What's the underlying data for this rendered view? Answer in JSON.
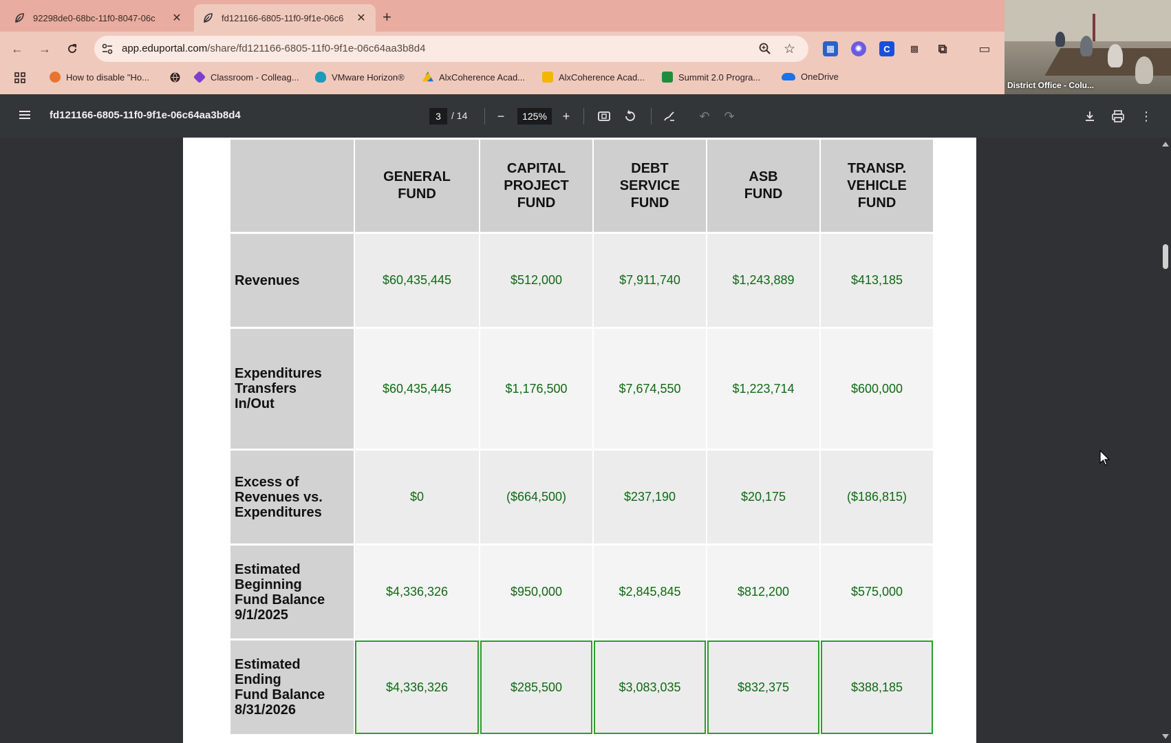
{
  "browser": {
    "tabs": [
      {
        "title": "92298de0-68bc-11f0-8047-06c",
        "active": false
      },
      {
        "title": "fd121166-6805-11f0-9f1e-06c6",
        "active": true
      }
    ],
    "url_host": "app.eduportal.com",
    "url_path": "/share/fd121166-6805-11f0-9f1e-06c64aa3b8d4",
    "bookmarks": [
      {
        "label": "How to disable \"Ho...",
        "color": "#e8742f"
      },
      {
        "label": "Classroom - Colleag...",
        "color": "#7b3fd0"
      },
      {
        "label": "VMware Horizon®",
        "color": "#1d9ab8"
      },
      {
        "label": "AlxCoherence Acad...",
        "color": "#2e7d32"
      },
      {
        "label": "AlxCoherence Acad...",
        "color": "#f2b705"
      },
      {
        "label": "Summit 2.0 Progra...",
        "color": "#1e8e3e"
      },
      {
        "label": "OneDrive",
        "color": "#1a73e8"
      }
    ]
  },
  "video": {
    "label": "District Office - Colu..."
  },
  "pdf": {
    "title": "fd121166-6805-11f0-9f1e-06c64aa3b8d4",
    "page_current": "3",
    "page_total": "/ 14",
    "zoom": "125%"
  },
  "table": {
    "headers": [
      "GENERAL\nFUND",
      "CAPITAL\nPROJECT\nFUND",
      "DEBT\nSERVICE\nFUND",
      "ASB\nFUND",
      "TRANSP.\nVEHICLE\nFUND"
    ],
    "rows": [
      {
        "label": "Revenues",
        "values": [
          "$60,435,445",
          "$512,000",
          "$7,911,740",
          "$1,243,889",
          "$413,185"
        ]
      },
      {
        "label": "Expenditures\nTransfers\nIn/Out",
        "values": [
          "$60,435,445",
          "$1,176,500",
          "$7,674,550",
          "$1,223,714",
          "$600,000"
        ]
      },
      {
        "label": "Excess of\nRevenues vs.\nExpenditures",
        "values": [
          "$0",
          "($664,500)",
          "$237,190",
          "$20,175",
          "($186,815)"
        ]
      },
      {
        "label": "Estimated\nBeginning\nFund Balance\n9/1/2025",
        "values": [
          "$4,336,326",
          "$950,000",
          "$2,845,845",
          "$812,200",
          "$575,000"
        ]
      },
      {
        "label": "Estimated\nEnding\nFund Balance\n8/31/2026",
        "values": [
          "$4,336,326",
          "$285,500",
          "$3,083,035",
          "$832,375",
          "$388,185"
        ]
      }
    ]
  },
  "colors": {
    "value_text": "#0f6a13",
    "highlight_border": "#2e9b2e",
    "tabstrip": "#e8ada0"
  }
}
